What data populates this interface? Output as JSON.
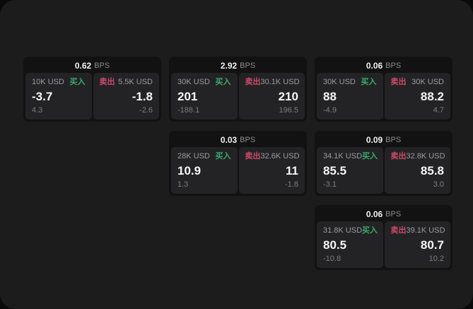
{
  "app": {
    "background": "#0a0a0a",
    "panel_background": "#1c1c1d"
  },
  "labels": {
    "buy": "买入",
    "sell": "卖出",
    "bps_unit": "BPS"
  },
  "colors": {
    "buy_green": "#3aa96e",
    "sell_red": "#cd4a6b",
    "value_white": "#f6f6f6",
    "muted_gray": "#9c9ca0"
  },
  "cards": [
    {
      "bps": "0.62",
      "buy": {
        "amount": "10K USD",
        "price": "-3.7",
        "delta": "4.3"
      },
      "sell": {
        "amount": "5.5K USD",
        "price": "-1.8",
        "delta": "-2.6"
      }
    },
    {
      "bps": "2.92",
      "buy": {
        "amount": "30K USD",
        "price": "201",
        "delta": "-188.1"
      },
      "sell": {
        "amount": "30.1K USD",
        "price": "210",
        "delta": "196.5"
      }
    },
    {
      "bps": "0.06",
      "buy": {
        "amount": "30K USD",
        "price": "88",
        "delta": "-4.9"
      },
      "sell": {
        "amount": "30K USD",
        "price": "88.2",
        "delta": "4.7"
      }
    },
    {
      "bps": "0.03",
      "buy": {
        "amount": "28K USD",
        "price": "10.9",
        "delta": "1.3"
      },
      "sell": {
        "amount": "32.6K USD",
        "price": "11",
        "delta": "-1.8"
      }
    },
    {
      "bps": "0.09",
      "buy": {
        "amount": "34.1K USD",
        "price": "85.5",
        "delta": "-3.1"
      },
      "sell": {
        "amount": "32.8K USD",
        "price": "85.8",
        "delta": "3.0"
      }
    },
    {
      "bps": "0.06",
      "buy": {
        "amount": "31.8K USD",
        "price": "80.5",
        "delta": "-10.8"
      },
      "sell": {
        "amount": "39.1K USD",
        "price": "80.7",
        "delta": "10.2"
      }
    }
  ]
}
